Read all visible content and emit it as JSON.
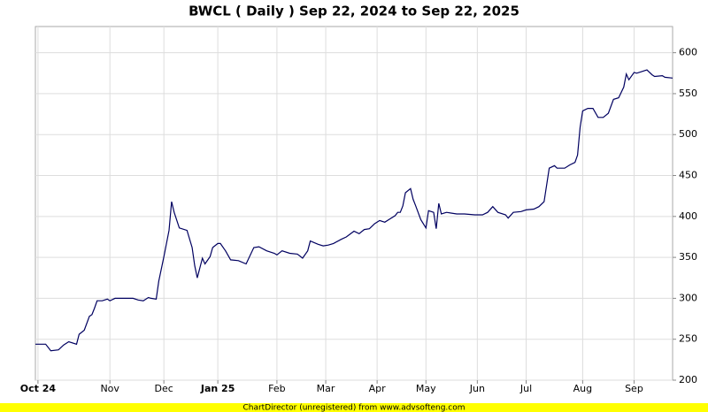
{
  "chart_data": {
    "type": "line",
    "title": "BWCL ( Daily ) Sep 22, 2024 to Sep 22, 2025",
    "footer": "ChartDirector (unregistered) from www.advsofteng.com",
    "grid": true,
    "xlim": [
      0,
      248
    ],
    "xticks": [
      {
        "value": 1,
        "label": "Oct 24"
      },
      {
        "value": 29,
        "label": "Nov"
      },
      {
        "value": 50,
        "label": "Dec"
      },
      {
        "value": 71,
        "label": "Jan 25"
      },
      {
        "value": 94,
        "label": "Feb"
      },
      {
        "value": 113,
        "label": "Mar"
      },
      {
        "value": 133,
        "label": "Apr"
      },
      {
        "value": 152,
        "label": "May"
      },
      {
        "value": 172,
        "label": "Jun"
      },
      {
        "value": 191,
        "label": "Jul"
      },
      {
        "value": 213,
        "label": "Aug"
      },
      {
        "value": 233,
        "label": "Sep"
      }
    ],
    "ylim": [
      200,
      632
    ],
    "yticks": [
      200,
      250,
      300,
      350,
      400,
      450,
      500,
      550,
      600
    ],
    "x": [
      0,
      4,
      6,
      9,
      11,
      13,
      16,
      17,
      19,
      21,
      22,
      23,
      24,
      26,
      28,
      29,
      31,
      34,
      38,
      40,
      42,
      44,
      45,
      47,
      48,
      50,
      52,
      53,
      54,
      56,
      59,
      61,
      62,
      63,
      65,
      66,
      68,
      69,
      71,
      72,
      74,
      76,
      79,
      82,
      85,
      87,
      90,
      93,
      94,
      96,
      99,
      102,
      104,
      106,
      107,
      110,
      112,
      114,
      116,
      119,
      121,
      124,
      126,
      128,
      130,
      132,
      134,
      136,
      138,
      140,
      141,
      142,
      143,
      144,
      146,
      147,
      148,
      150,
      152,
      153,
      155,
      156,
      157,
      158,
      160,
      164,
      167,
      171,
      174,
      176,
      178,
      180,
      183,
      184,
      186,
      189,
      191,
      194,
      196,
      198,
      200,
      202,
      203,
      206,
      208,
      210,
      211,
      212,
      213,
      215,
      217,
      219,
      221,
      223,
      225,
      227,
      229,
      230,
      231,
      233,
      234,
      236,
      238,
      240,
      241,
      244,
      245,
      248
    ],
    "series": [
      {
        "color": "#000060",
        "values": [
          244,
          244,
          236,
          237,
          243,
          247,
          244,
          256,
          261,
          278,
          280,
          288,
          297,
          297,
          299,
          297,
          300,
          300,
          300,
          298,
          297,
          301,
          300,
          299,
          321,
          351,
          383,
          418,
          405,
          386,
          383,
          362,
          340,
          325,
          349,
          342,
          351,
          362,
          367,
          367,
          358,
          347,
          346,
          342,
          362,
          363,
          358,
          355,
          353,
          358,
          355,
          354,
          349,
          358,
          370,
          366,
          364,
          365,
          367,
          372,
          375,
          382,
          379,
          384,
          385,
          391,
          395,
          393,
          397,
          401,
          405,
          405,
          413,
          429,
          434,
          421,
          413,
          396,
          386,
          407,
          405,
          385,
          416,
          403,
          405,
          403,
          403,
          402,
          402,
          405,
          412,
          405,
          402,
          398,
          405,
          406,
          408,
          409,
          412,
          418,
          459,
          462,
          459,
          459,
          463,
          466,
          475,
          509,
          529,
          532,
          532,
          521,
          521,
          526,
          543,
          545,
          558,
          574,
          567,
          576,
          575,
          577,
          579,
          573,
          571,
          572,
          570,
          569
        ]
      }
    ]
  }
}
